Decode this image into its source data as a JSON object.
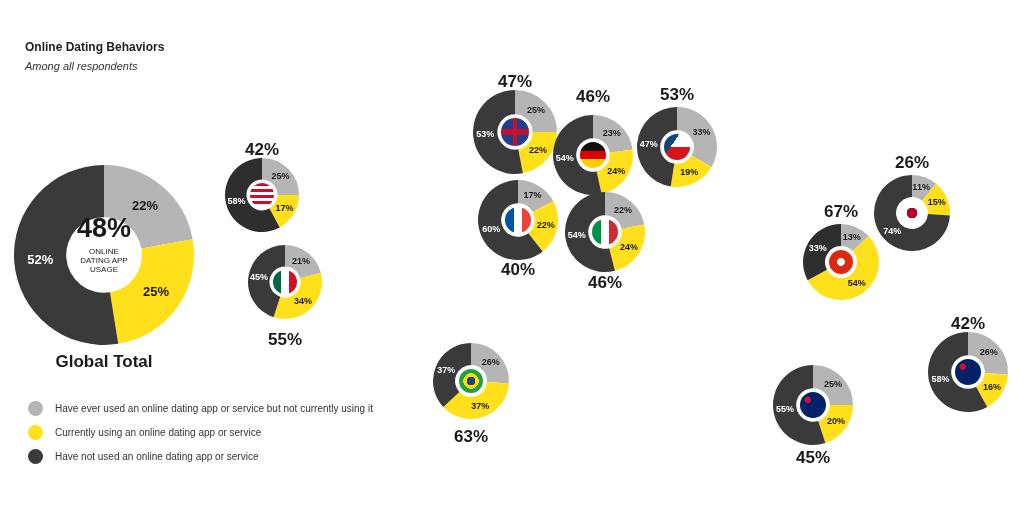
{
  "chart_data": [
    {
      "type": "donut",
      "title": "Online Dating Behaviors",
      "subtitle": "Among all respondents",
      "categories": [
        "Have ever used an online dating app or service but not currently using it",
        "Currently using an online dating app or service",
        "Have not used an online dating app or service"
      ],
      "values": [
        22,
        25,
        52
      ],
      "colors": [
        "#b5b5b5",
        "#ffe01b",
        "#3a3a3a"
      ],
      "value_labels": [
        "22%",
        "25%",
        "52%"
      ],
      "legend": "bottom right",
      "annotations": [
        "48%",
        "ONLINE DATING APP USAGE",
        "Global Total"
      ]
    },
    {
      "type": "donut",
      "categories": [
        null,
        null,
        null
      ],
      "values": [
        25,
        17,
        58
      ],
      "colors": [
        "#b5b5b5",
        "#ffe01b",
        "#2e2e2e"
      ],
      "value_labels": [
        "25%",
        "17%",
        "58%"
      ],
      "annotations": [
        "42%"
      ]
    },
    {
      "type": "donut",
      "categories": [
        null,
        null,
        null
      ],
      "values": [
        21,
        34,
        45
      ],
      "colors": [
        "#b5b5b5",
        "#ffe01b",
        "#3a3a3a"
      ],
      "value_labels": [
        "21%",
        "34%",
        "45%"
      ],
      "annotations": [
        "55%"
      ]
    },
    {
      "type": "donut",
      "categories": [
        null,
        null,
        null
      ],
      "values": [
        26,
        37,
        37
      ],
      "colors": [
        "#b5b5b5",
        "#ffe01b",
        "#3a3a3a"
      ],
      "value_labels": [
        "26%",
        "37%",
        "37%"
      ],
      "annotations": [
        "63%"
      ]
    },
    {
      "type": "donut",
      "categories": [
        null,
        null,
        null
      ],
      "values": [
        25,
        22,
        53
      ],
      "colors": [
        "#b5b5b5",
        "#ffe01b",
        "#3a3a3a"
      ],
      "value_labels": [
        "25%",
        "22%",
        "53%"
      ],
      "annotations": [
        "47%"
      ]
    },
    {
      "type": "donut",
      "categories": [
        null,
        null,
        null
      ],
      "values": [
        23,
        24,
        54
      ],
      "colors": [
        "#b5b5b5",
        "#ffe01b",
        "#3a3a3a"
      ],
      "value_labels": [
        "23%",
        "24%",
        "54%"
      ],
      "annotations": [
        "46%"
      ]
    },
    {
      "type": "donut",
      "categories": [
        null,
        null,
        null
      ],
      "values": [
        33,
        19,
        47
      ],
      "colors": [
        "#b5b5b5",
        "#ffe01b",
        "#3a3a3a"
      ],
      "value_labels": [
        "33%",
        "19%",
        "47%"
      ],
      "annotations": [
        "53%"
      ]
    },
    {
      "type": "donut",
      "categories": [
        null,
        null,
        null
      ],
      "values": [
        17,
        22,
        60
      ],
      "colors": [
        "#b5b5b5",
        "#ffe01b",
        "#3a3a3a"
      ],
      "value_labels": [
        "17%",
        "22%",
        "60%"
      ],
      "annotations": [
        "40%"
      ]
    },
    {
      "type": "donut",
      "categories": [
        null,
        null,
        null
      ],
      "values": [
        22,
        24,
        54
      ],
      "colors": [
        "#b5b5b5",
        "#ffe01b",
        "#3a3a3a"
      ],
      "value_labels": [
        "22%",
        "24%",
        "54%"
      ],
      "annotations": [
        "46%"
      ]
    },
    {
      "type": "donut",
      "categories": [
        null,
        null,
        null
      ],
      "values": [
        13,
        54,
        33
      ],
      "colors": [
        "#b5b5b5",
        "#ffe01b",
        "#2e2e2e"
      ],
      "value_labels": [
        "13%",
        "54%",
        "33%"
      ],
      "annotations": [
        "67%"
      ]
    },
    {
      "type": "donut",
      "categories": [
        null,
        null,
        null
      ],
      "values": [
        11,
        15,
        74
      ],
      "colors": [
        "#b5b5b5",
        "#ffe01b",
        "#3a3a3a"
      ],
      "value_labels": [
        "11%",
        "15%",
        "74%"
      ],
      "annotations": [
        "26%"
      ]
    },
    {
      "type": "donut",
      "categories": [
        null,
        null,
        null
      ],
      "values": [
        25,
        20,
        55
      ],
      "colors": [
        "#b5b5b5",
        "#ffe01b",
        "#3a3a3a"
      ],
      "value_labels": [
        "25%",
        "20%",
        "55%"
      ],
      "annotations": [
        "45%"
      ]
    },
    {
      "type": "donut",
      "categories": [
        null,
        null,
        null
      ],
      "values": [
        26,
        16,
        58
      ],
      "colors": [
        "#b5b5b5",
        "#ffe01b",
        "#3a3a3a"
      ],
      "value_labels": [
        "26%",
        "16%",
        "58%"
      ],
      "annotations": [
        "42%"
      ]
    }
  ]
}
